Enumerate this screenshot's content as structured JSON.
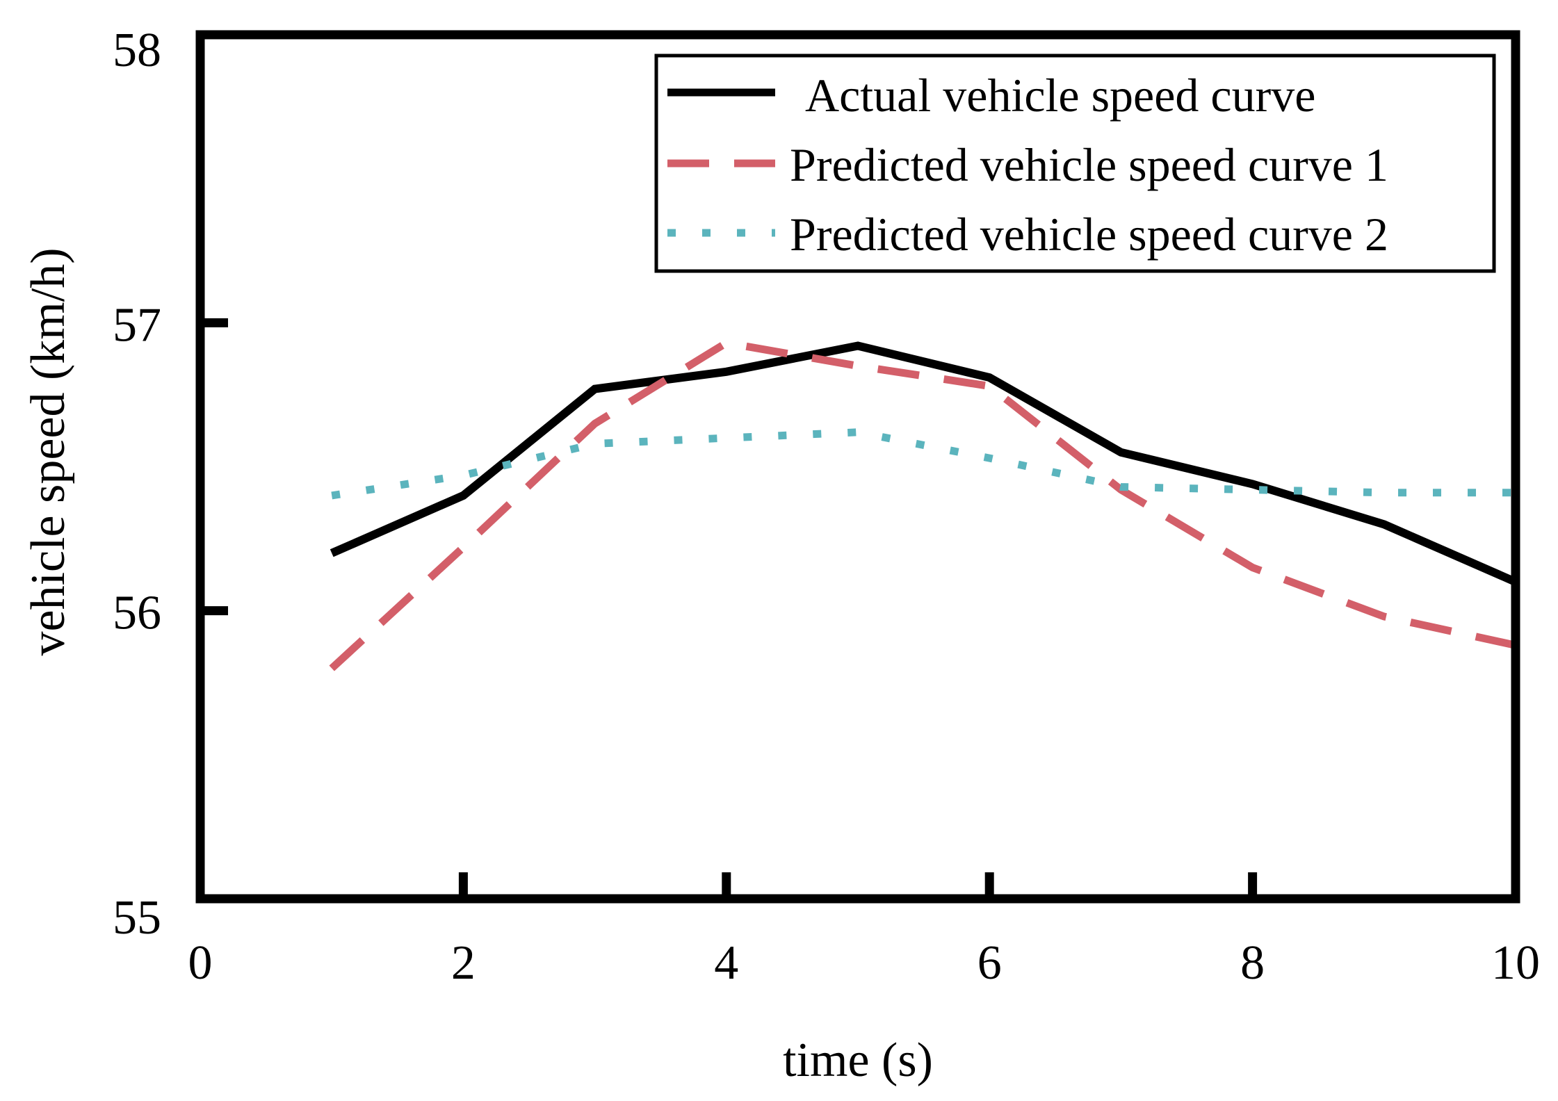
{
  "chart_data": {
    "type": "line",
    "title": "",
    "xlabel": "time (s)",
    "ylabel": "vehicle speed (km/h)",
    "xlim": [
      0,
      10
    ],
    "ylim": [
      55,
      58
    ],
    "xticks": [
      0,
      2,
      4,
      6,
      8,
      10
    ],
    "yticks": [
      55,
      56,
      57,
      58
    ],
    "grid": false,
    "legend_position": "top-right",
    "x": [
      1,
      2,
      3,
      4,
      5,
      6,
      7,
      8,
      9,
      10
    ],
    "series": [
      {
        "name": "Actual vehicle speed curve",
        "style": "solid",
        "color": "#000000",
        "values": [
          56.2,
          56.4,
          56.77,
          56.83,
          56.92,
          56.81,
          56.55,
          56.44,
          56.3,
          56.1
        ]
      },
      {
        "name": "Predicted vehicle speed curve 1",
        "style": "dashed",
        "color": "#d35f69",
        "values": [
          55.8,
          56.22,
          56.65,
          56.93,
          56.85,
          56.78,
          56.42,
          56.15,
          55.98,
          55.88
        ]
      },
      {
        "name": "Predicted vehicle speed curve 2",
        "style": "dotted",
        "color": "#5bb4bd",
        "values": [
          56.4,
          56.47,
          56.58,
          56.6,
          56.62,
          56.53,
          56.43,
          56.42,
          56.41,
          56.41
        ]
      }
    ]
  }
}
